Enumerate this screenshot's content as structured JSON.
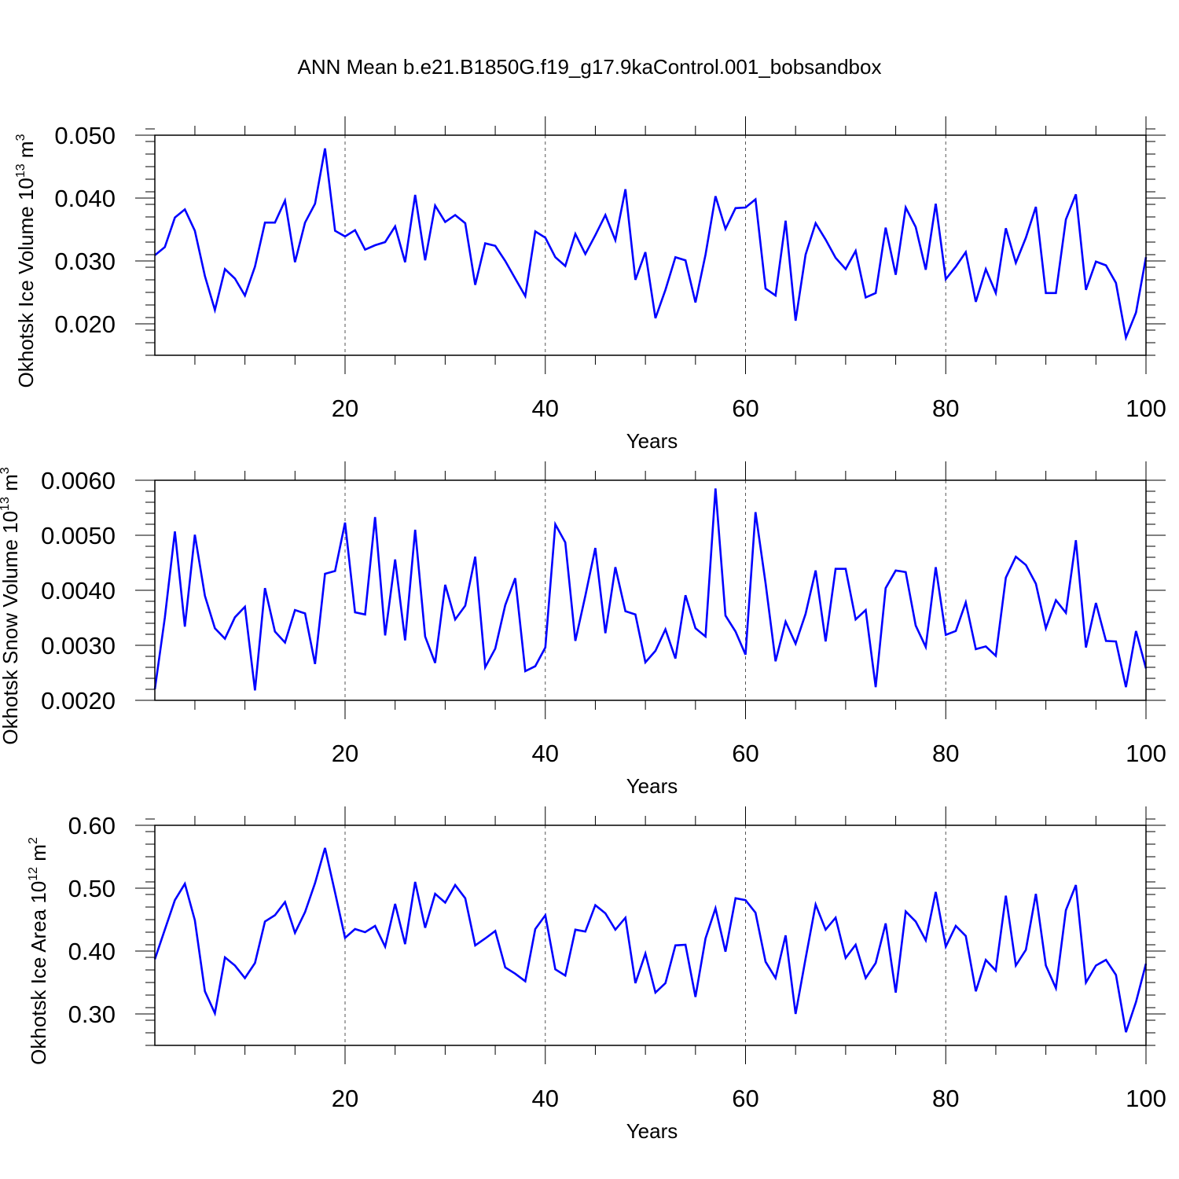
{
  "title": "ANN Mean b.e21.B1850G.f19_g17.9kaControl.001_bobsandbox",
  "colors": {
    "series": "#0000ff",
    "axes": "#000000",
    "grid": "#555555"
  },
  "chart_data": [
    {
      "type": "line",
      "xlabel": "Years",
      "ylabel": "Okhotsk Ice Volume 10",
      "ylabel_exp": "13",
      "ylabel_unit": "m",
      "ylabel_unit_exp": "3",
      "xlim": [
        1,
        100
      ],
      "ylim": [
        0.015,
        0.05
      ],
      "grid": "vertical dashed at major x ticks",
      "x_ticks": [
        20,
        40,
        60,
        80,
        100
      ],
      "x_tick_labels": [
        "20",
        "40",
        "60",
        "80",
        "100"
      ],
      "y_ticks": [
        0.02,
        0.03,
        0.04,
        0.05
      ],
      "y_tick_labels": [
        "0.020",
        "0.030",
        "0.040",
        "0.050"
      ],
      "y_minor_step": 0.002,
      "x_start": 1,
      "values": [
        0.0309,
        0.0322,
        0.0369,
        0.0382,
        0.0348,
        0.0276,
        0.0222,
        0.0287,
        0.0272,
        0.0245,
        0.0291,
        0.0361,
        0.0361,
        0.0396,
        0.0298,
        0.0361,
        0.0391,
        0.0479,
        0.0348,
        0.0339,
        0.0349,
        0.0318,
        0.0325,
        0.033,
        0.0355,
        0.0298,
        0.0405,
        0.0301,
        0.0388,
        0.0362,
        0.0373,
        0.036,
        0.0262,
        0.0328,
        0.0324,
        0.03,
        0.0272,
        0.0244,
        0.0347,
        0.0337,
        0.0306,
        0.0292,
        0.0343,
        0.0311,
        0.0341,
        0.0373,
        0.0333,
        0.0414,
        0.027,
        0.0314,
        0.0209,
        0.0254,
        0.0306,
        0.0301,
        0.0234,
        0.031,
        0.0403,
        0.0351,
        0.0384,
        0.0385,
        0.0398,
        0.0256,
        0.0245,
        0.0364,
        0.0205,
        0.031,
        0.036,
        0.0334,
        0.0305,
        0.0287,
        0.0316,
        0.0242,
        0.0249,
        0.0353,
        0.0278,
        0.0385,
        0.0354,
        0.0286,
        0.0391,
        0.0271,
        0.0291,
        0.0314,
        0.0235,
        0.0287,
        0.0249,
        0.0352,
        0.0297,
        0.0337,
        0.0386,
        0.0249,
        0.0249,
        0.0366,
        0.0406,
        0.0254,
        0.0299,
        0.0293,
        0.0265,
        0.0178,
        0.0218,
        0.0306
      ]
    },
    {
      "type": "line",
      "xlabel": "Years",
      "ylabel": "Okhotsk Snow Volume 10",
      "ylabel_exp": "13",
      "ylabel_unit": "m",
      "ylabel_unit_exp": "3",
      "xlim": [
        1,
        100
      ],
      "ylim": [
        0.002,
        0.006
      ],
      "grid": "vertical dashed at major x ticks",
      "x_ticks": [
        20,
        40,
        60,
        80,
        100
      ],
      "x_tick_labels": [
        "20",
        "40",
        "60",
        "80",
        "100"
      ],
      "y_ticks": [
        0.002,
        0.003,
        0.004,
        0.005,
        0.006
      ],
      "y_tick_labels": [
        "0.0020",
        "0.0030",
        "0.0040",
        "0.0050",
        "0.0060"
      ],
      "y_minor_step": 0.0002,
      "x_start": 1,
      "values": [
        0.0022,
        0.0035,
        0.00507,
        0.00334,
        0.00501,
        0.0039,
        0.00331,
        0.00312,
        0.00351,
        0.0037,
        0.00218,
        0.00404,
        0.00325,
        0.00305,
        0.00364,
        0.00358,
        0.00266,
        0.0043,
        0.00435,
        0.00523,
        0.0036,
        0.00356,
        0.00533,
        0.00318,
        0.00456,
        0.00309,
        0.0051,
        0.00316,
        0.00268,
        0.0041,
        0.00347,
        0.00372,
        0.00461,
        0.0026,
        0.00294,
        0.00373,
        0.00422,
        0.00253,
        0.00262,
        0.00296,
        0.0052,
        0.00487,
        0.00308,
        0.0039,
        0.00477,
        0.00322,
        0.00442,
        0.00362,
        0.00356,
        0.00269,
        0.0029,
        0.00329,
        0.00276,
        0.00391,
        0.00331,
        0.00316,
        0.00585,
        0.00354,
        0.00325,
        0.00283,
        0.00542,
        0.00413,
        0.00271,
        0.00343,
        0.00303,
        0.00357,
        0.00436,
        0.00307,
        0.00439,
        0.00439,
        0.00347,
        0.00364,
        0.00224,
        0.00404,
        0.00436,
        0.00433,
        0.00336,
        0.00297,
        0.00442,
        0.00319,
        0.00326,
        0.00378,
        0.00293,
        0.00298,
        0.00281,
        0.00423,
        0.00461,
        0.00446,
        0.00412,
        0.00331,
        0.00382,
        0.00359,
        0.00491,
        0.00296,
        0.00377,
        0.00308,
        0.00307,
        0.00224,
        0.00326,
        0.00258
      ]
    },
    {
      "type": "line",
      "xlabel": "Years",
      "ylabel": "Okhotsk Ice Area 10",
      "ylabel_exp": "12",
      "ylabel_unit": "m",
      "ylabel_unit_exp": "2",
      "xlim": [
        1,
        100
      ],
      "ylim": [
        0.25,
        0.6
      ],
      "grid": "vertical dashed at major x ticks",
      "x_ticks": [
        20,
        40,
        60,
        80,
        100
      ],
      "x_tick_labels": [
        "20",
        "40",
        "60",
        "80",
        "100"
      ],
      "y_ticks": [
        0.3,
        0.4,
        0.5,
        0.6
      ],
      "y_tick_labels": [
        "0.30",
        "0.40",
        "0.50",
        "0.60"
      ],
      "y_minor_step": 0.02,
      "x_start": 1,
      "values": [
        0.387,
        0.434,
        0.481,
        0.507,
        0.449,
        0.336,
        0.301,
        0.39,
        0.377,
        0.357,
        0.381,
        0.447,
        0.457,
        0.478,
        0.429,
        0.462,
        0.508,
        0.564,
        0.493,
        0.421,
        0.435,
        0.43,
        0.44,
        0.407,
        0.475,
        0.411,
        0.51,
        0.437,
        0.491,
        0.477,
        0.505,
        0.484,
        0.409,
        0.42,
        0.432,
        0.374,
        0.364,
        0.352,
        0.435,
        0.457,
        0.371,
        0.361,
        0.434,
        0.431,
        0.473,
        0.46,
        0.434,
        0.453,
        0.349,
        0.396,
        0.334,
        0.349,
        0.409,
        0.41,
        0.327,
        0.42,
        0.468,
        0.399,
        0.484,
        0.481,
        0.461,
        0.383,
        0.357,
        0.425,
        0.3,
        0.388,
        0.474,
        0.434,
        0.453,
        0.389,
        0.41,
        0.357,
        0.381,
        0.444,
        0.334,
        0.463,
        0.447,
        0.417,
        0.494,
        0.407,
        0.44,
        0.424,
        0.336,
        0.386,
        0.369,
        0.488,
        0.377,
        0.402,
        0.491,
        0.377,
        0.341,
        0.465,
        0.505,
        0.35,
        0.377,
        0.386,
        0.362,
        0.271,
        0.319,
        0.38
      ]
    }
  ]
}
